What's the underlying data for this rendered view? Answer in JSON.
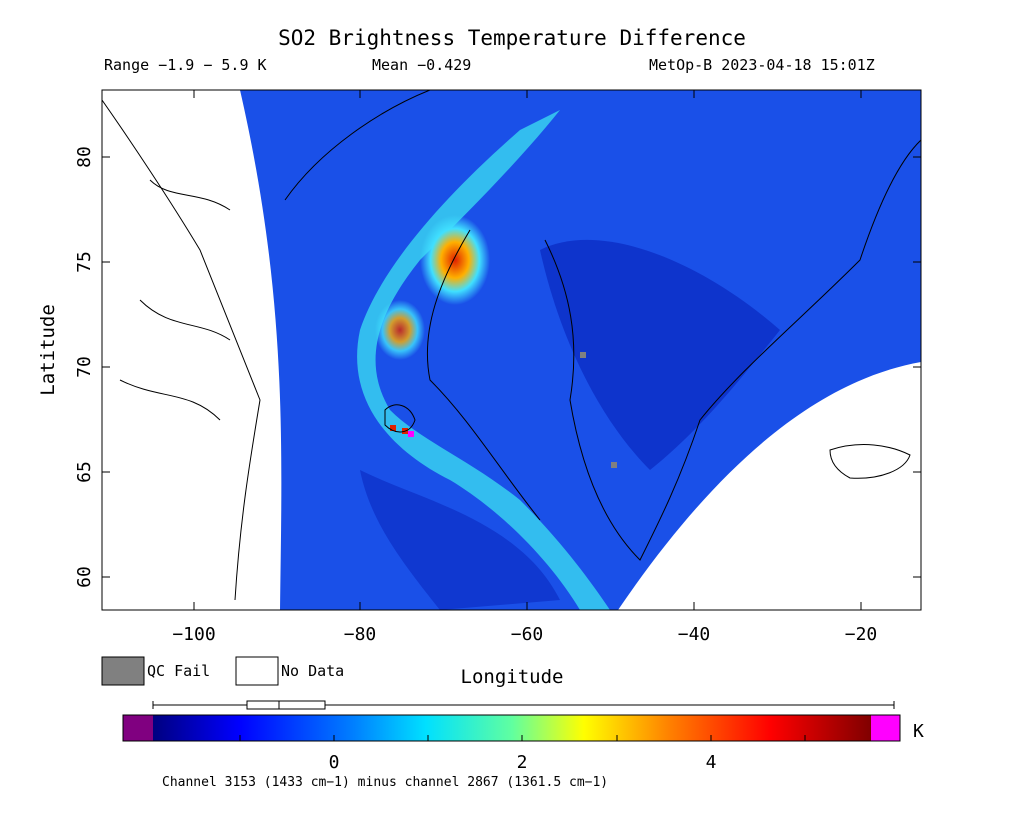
{
  "header": {
    "title": "SO2 Brightness Temperature Difference",
    "range": "Range −1.9 − 5.9 K",
    "mean": "Mean −0.429",
    "satellite_time": "MetOp-B 2023-04-18 15:01Z"
  },
  "axes": {
    "ylabel": "Latitude",
    "xlabel": "Longitude",
    "y_ticks": [
      "80",
      "75",
      "70",
      "65",
      "60"
    ],
    "x_ticks": [
      "−100",
      "−80",
      "−60",
      "−40",
      "−20"
    ],
    "x_range": [
      -110,
      -14
    ],
    "y_range": [
      58.5,
      83
    ]
  },
  "legend": {
    "qc_fail": "QC Fail",
    "no_data": "No Data",
    "qc_color": "#808080",
    "nodata_color": "#ffffff"
  },
  "colorbar": {
    "unit": "K",
    "ticks": [
      "0",
      "2",
      "4"
    ],
    "min": -1.9,
    "max": 5.9,
    "underflow_color": "#800080",
    "overflow_color": "#ff00ff",
    "caption": "Channel 3153 (1433 cm−1) minus channel 2867 (1361.5 cm−1)"
  },
  "colors": {
    "background_swath": "#1040e0",
    "plume_high": "#e02000",
    "plume_mid": "#40e0ff"
  }
}
